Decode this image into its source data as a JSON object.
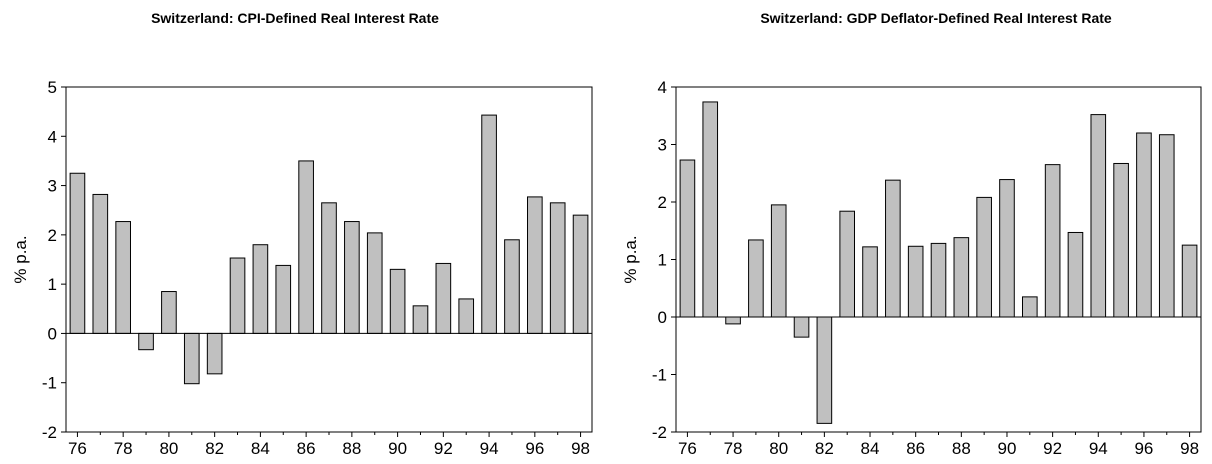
{
  "chart_data": [
    {
      "type": "bar",
      "title": "Switzerland: CPI-Defined Real Interest Rate",
      "ylabel": "% p.a.",
      "xlabel": "",
      "ylim": [
        -2,
        5
      ],
      "yticks": [
        -2,
        -1,
        0,
        1,
        2,
        3,
        4,
        5
      ],
      "x": [
        76,
        77,
        78,
        79,
        80,
        81,
        82,
        83,
        84,
        85,
        86,
        87,
        88,
        89,
        90,
        91,
        92,
        93,
        94,
        95,
        96,
        97,
        98
      ],
      "xtick_labels": [
        "76",
        "78",
        "80",
        "82",
        "84",
        "86",
        "88",
        "90",
        "92",
        "94",
        "96",
        "98"
      ],
      "values": [
        3.25,
        2.82,
        2.27,
        -0.33,
        0.85,
        -1.02,
        -0.82,
        1.53,
        1.8,
        1.38,
        3.5,
        2.65,
        2.27,
        2.04,
        1.3,
        0.56,
        1.42,
        0.7,
        4.43,
        1.9,
        2.77,
        2.65,
        2.4
      ],
      "bar_color": "#c0c0c0",
      "grid": false,
      "legend": "none"
    },
    {
      "type": "bar",
      "title": "Switzerland: GDP Deflator-Defined Real Interest Rate",
      "ylabel": "% p.a.",
      "xlabel": "",
      "ylim": [
        -2,
        4
      ],
      "yticks": [
        -2,
        -1,
        0,
        1,
        2,
        3,
        4
      ],
      "x": [
        76,
        77,
        78,
        79,
        80,
        81,
        82,
        83,
        84,
        85,
        86,
        87,
        88,
        89,
        90,
        91,
        92,
        93,
        94,
        95,
        96,
        97,
        98
      ],
      "xtick_labels": [
        "76",
        "78",
        "80",
        "82",
        "84",
        "86",
        "88",
        "90",
        "92",
        "94",
        "96",
        "98"
      ],
      "values": [
        2.73,
        3.74,
        -0.12,
        1.34,
        1.95,
        -0.35,
        -1.85,
        1.84,
        1.22,
        2.38,
        1.23,
        1.28,
        1.38,
        2.08,
        2.39,
        0.35,
        2.65,
        1.47,
        3.52,
        2.67,
        3.2,
        3.17,
        1.25
      ],
      "bar_color": "#c0c0c0",
      "grid": false,
      "legend": "none"
    }
  ]
}
